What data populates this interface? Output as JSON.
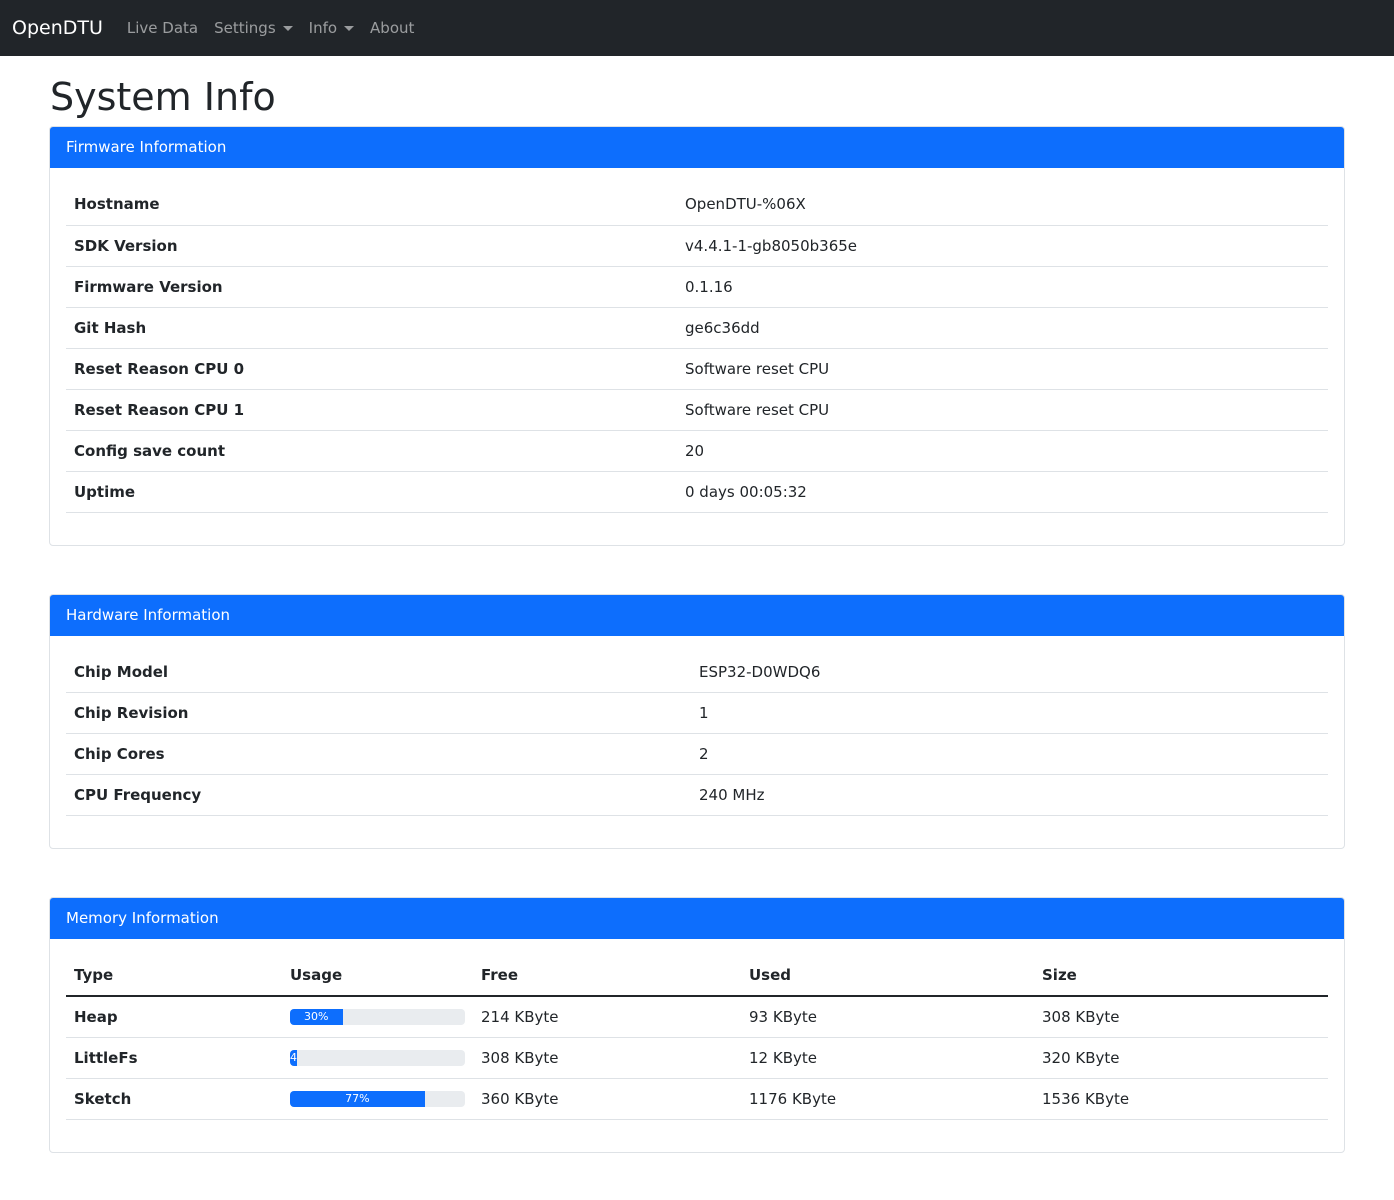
{
  "nav": {
    "brand": "OpenDTU",
    "items": [
      "Live Data",
      "Settings",
      "Info",
      "About"
    ]
  },
  "page_title": "System Info",
  "firmware": {
    "title": "Firmware Information",
    "rows": [
      [
        "Hostname",
        "OpenDTU-%06X"
      ],
      [
        "SDK Version",
        "v4.4.1-1-gb8050b365e"
      ],
      [
        "Firmware Version",
        "0.1.16"
      ],
      [
        "Git Hash",
        "ge6c36dd"
      ],
      [
        "Reset Reason CPU 0",
        "Software reset CPU"
      ],
      [
        "Reset Reason CPU 1",
        "Software reset CPU"
      ],
      [
        "Config save count",
        "20"
      ],
      [
        "Uptime",
        "0 days 00:05:32"
      ]
    ]
  },
  "hardware": {
    "title": "Hardware Information",
    "rows": [
      [
        "Chip Model",
        "ESP32-D0WDQ6"
      ],
      [
        "Chip Revision",
        "1"
      ],
      [
        "Chip Cores",
        "2"
      ],
      [
        "CPU Frequency",
        "240 MHz"
      ]
    ]
  },
  "memory": {
    "title": "Memory Information",
    "headers": [
      "Type",
      "Usage",
      "Free",
      "Used",
      "Size"
    ],
    "rows": [
      {
        "type": "Heap",
        "usage": 30,
        "label": "30%",
        "free": "214 KByte",
        "used": "93 KByte",
        "size": "308 KByte"
      },
      {
        "type": "LittleFs",
        "usage": 4,
        "label": "4",
        "free": "308 KByte",
        "used": "12 KByte",
        "size": "320 KByte"
      },
      {
        "type": "Sketch",
        "usage": 77,
        "label": "77%",
        "free": "360 KByte",
        "used": "1176 KByte",
        "size": "1536 KByte"
      }
    ]
  },
  "colors": {
    "accent": "#0d6efd",
    "navbar": "#212529"
  }
}
